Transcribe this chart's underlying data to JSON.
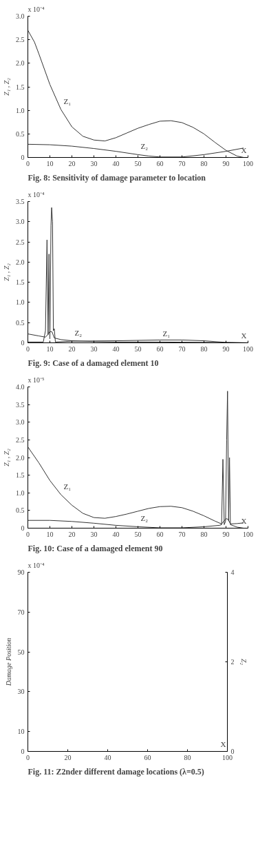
{
  "chart_data": [
    {
      "type": "line",
      "title": "Fig. 8: Sensitivity of damage parameter to location",
      "xlabel": "X",
      "ylabel": "Z₁ , Z₂",
      "annotations": [
        "x 10⁻⁴"
      ],
      "xlim": [
        0,
        100
      ],
      "xticks": [
        0,
        10,
        20,
        30,
        40,
        50,
        60,
        70,
        80,
        90,
        100
      ],
      "ylim": [
        0,
        3.0
      ],
      "yticks": [
        {
          "value": 0,
          "label": "0"
        },
        {
          "value": 0.5,
          "label": "0.5"
        },
        {
          "value": 1.0,
          "label": "1.0"
        },
        {
          "value": 1.5,
          "label": "1.5"
        },
        {
          "value": 2.0,
          "label": "2.0"
        },
        {
          "value": 2.5,
          "label": "2.5"
        },
        {
          "value": 3.0,
          "label": "3.0"
        }
      ],
      "grid": false,
      "series": [
        {
          "name": "Z₁",
          "color": "#333333",
          "x": [
            0,
            3,
            5,
            10,
            15,
            20,
            25,
            30,
            35,
            40,
            45,
            50,
            55,
            60,
            65,
            70,
            75,
            80,
            85,
            90,
            95,
            98
          ],
          "values": [
            2.7,
            2.45,
            2.2,
            1.55,
            1.02,
            0.65,
            0.45,
            0.37,
            0.35,
            0.42,
            0.52,
            0.62,
            0.7,
            0.77,
            0.78,
            0.74,
            0.64,
            0.5,
            0.32,
            0.15,
            0.03,
            0.0
          ]
        },
        {
          "name": "Z₂",
          "color": "#333333",
          "x": [
            0,
            10,
            20,
            30,
            40,
            50,
            55,
            60,
            70,
            80,
            90,
            98
          ],
          "values": [
            0.28,
            0.27,
            0.24,
            0.19,
            0.13,
            0.06,
            0.03,
            0.01,
            0.01,
            0.06,
            0.13,
            0.2
          ]
        }
      ]
    },
    {
      "type": "line",
      "title": "Fig. 9: Case of a damaged element 10",
      "xlabel": "X",
      "ylabel": "Z₁ , Z₂",
      "annotations": [
        "x 10⁻⁴"
      ],
      "xlim": [
        0,
        100
      ],
      "xticks": [
        0,
        10,
        20,
        30,
        40,
        50,
        60,
        70,
        80,
        90,
        100
      ],
      "ylim": [
        0,
        3.5
      ],
      "yticks": [
        {
          "value": 0,
          "label": "0"
        },
        {
          "value": 0.5,
          "label": "0.5"
        },
        {
          "value": 1.0,
          "label": "1.0"
        },
        {
          "value": 1.5,
          "label": "1.5"
        },
        {
          "value": 2.0,
          "label": "2.0"
        },
        {
          "value": 2.5,
          "label": "2.5"
        },
        {
          "value": 3.0,
          "label": "3.0"
        },
        {
          "value": 3.5,
          "label": "3.5"
        }
      ],
      "grid": false,
      "series": [
        {
          "name": "Z₂",
          "color": "#333333",
          "x": [
            0,
            7,
            8,
            8.7,
            9.2,
            9.6,
            10,
            10.5,
            10.8,
            11.2,
            11.6,
            12,
            12.5,
            20,
            40,
            60,
            70,
            80,
            90,
            100
          ],
          "values": [
            0.02,
            0.02,
            0.3,
            2.55,
            0.2,
            2.2,
            0.1,
            2.9,
            3.35,
            3.0,
            0.3,
            0.35,
            0.02,
            0.04,
            0.05,
            0.07,
            0.07,
            0.05,
            0.01,
            0.0
          ]
        },
        {
          "name": "Z₁",
          "color": "#333333",
          "x": [
            0,
            5,
            8,
            9,
            10,
            11,
            12,
            15,
            20,
            30,
            40,
            60,
            80,
            100
          ],
          "values": [
            0.22,
            0.17,
            0.14,
            0.2,
            0.28,
            0.27,
            0.12,
            0.08,
            0.05,
            0.03,
            0.02,
            0.02,
            0.01,
            0.0
          ]
        }
      ]
    },
    {
      "type": "line",
      "title": "Fig. 10: Case of a damaged element 90",
      "xlabel": "X",
      "ylabel": "Z₁ , Z₂",
      "annotations": [
        "x 10⁻⁵"
      ],
      "xlim": [
        0,
        100
      ],
      "xticks": [
        0,
        10,
        20,
        30,
        40,
        50,
        60,
        70,
        80,
        90,
        100
      ],
      "ylim": [
        0,
        4.0
      ],
      "yticks": [
        {
          "value": 0,
          "label": "0"
        },
        {
          "value": 0.5,
          "label": "0.5"
        },
        {
          "value": 1.0,
          "label": "1.0"
        },
        {
          "value": 1.5,
          "label": "1.5"
        },
        {
          "value": 2.0,
          "label": "2.0"
        },
        {
          "value": 2.5,
          "label": "2.5"
        },
        {
          "value": 3.0,
          "label": "3.0"
        },
        {
          "value": 3.5,
          "label": "3.5"
        },
        {
          "value": 4.0,
          "label": "4.0"
        }
      ],
      "grid": false,
      "series": [
        {
          "name": "Z₁",
          "color": "#333333",
          "x": [
            0,
            5,
            10,
            15,
            20,
            25,
            30,
            35,
            40,
            45,
            50,
            55,
            60,
            65,
            70,
            75,
            80,
            85,
            88,
            90,
            91,
            92,
            95,
            98
          ],
          "values": [
            2.3,
            1.85,
            1.35,
            0.95,
            0.65,
            0.42,
            0.3,
            0.28,
            0.33,
            0.4,
            0.48,
            0.56,
            0.61,
            0.62,
            0.58,
            0.48,
            0.35,
            0.2,
            0.12,
            0.27,
            0.25,
            0.12,
            0.13,
            0.15
          ]
        },
        {
          "name": "Z₂",
          "color": "#333333",
          "x": [
            0,
            10,
            20,
            30,
            40,
            50,
            60,
            70,
            80,
            87,
            88,
            88.6,
            89.2,
            89.8,
            90.3,
            90.7,
            91.2,
            91.6,
            92,
            95,
            98
          ],
          "values": [
            0.22,
            0.22,
            0.19,
            0.14,
            0.08,
            0.04,
            0.01,
            0.01,
            0.04,
            0.08,
            0.1,
            1.95,
            0.1,
            0.2,
            2.5,
            3.88,
            0.2,
            2.0,
            0.1,
            0.03,
            0.0
          ]
        }
      ]
    },
    {
      "type": "line",
      "title": "Fig. 11: Z2nder different damage locations (λ=0.5)",
      "xlabel": "X",
      "ylabel": "Damage Position",
      "y2label": "Z₂",
      "annotations": [
        "x 10⁻⁴"
      ],
      "xlim": [
        0,
        100
      ],
      "xticks": [
        0,
        20,
        40,
        60,
        80,
        100
      ],
      "ylim": [
        0,
        90
      ],
      "yticks": [
        0,
        10,
        30,
        50,
        70,
        90
      ],
      "y2lim": [
        0,
        4
      ],
      "y2ticks": [
        0,
        2,
        4
      ]
    }
  ]
}
